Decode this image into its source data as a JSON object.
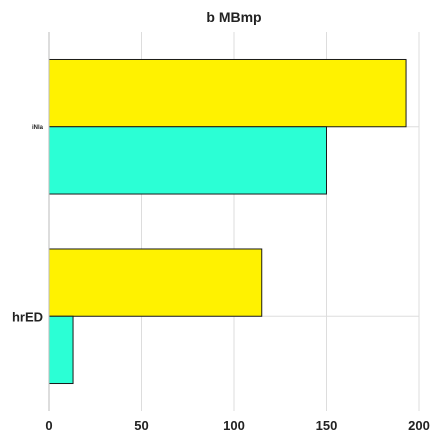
{
  "chart_data": {
    "type": "bar",
    "orientation": "horizontal",
    "title": "b MBmp",
    "categories": [
      "hrED",
      "iNla"
    ],
    "series": [
      {
        "color": "#fff200",
        "values": [
          115,
          193
        ]
      },
      {
        "color": "#2bffd5",
        "values": [
          13,
          150
        ]
      }
    ],
    "xlim": [
      0,
      200
    ],
    "xticks": [
      0,
      50,
      100,
      150,
      200
    ],
    "xlabel": "",
    "ylabel": "",
    "grid": true,
    "legend": "none"
  }
}
